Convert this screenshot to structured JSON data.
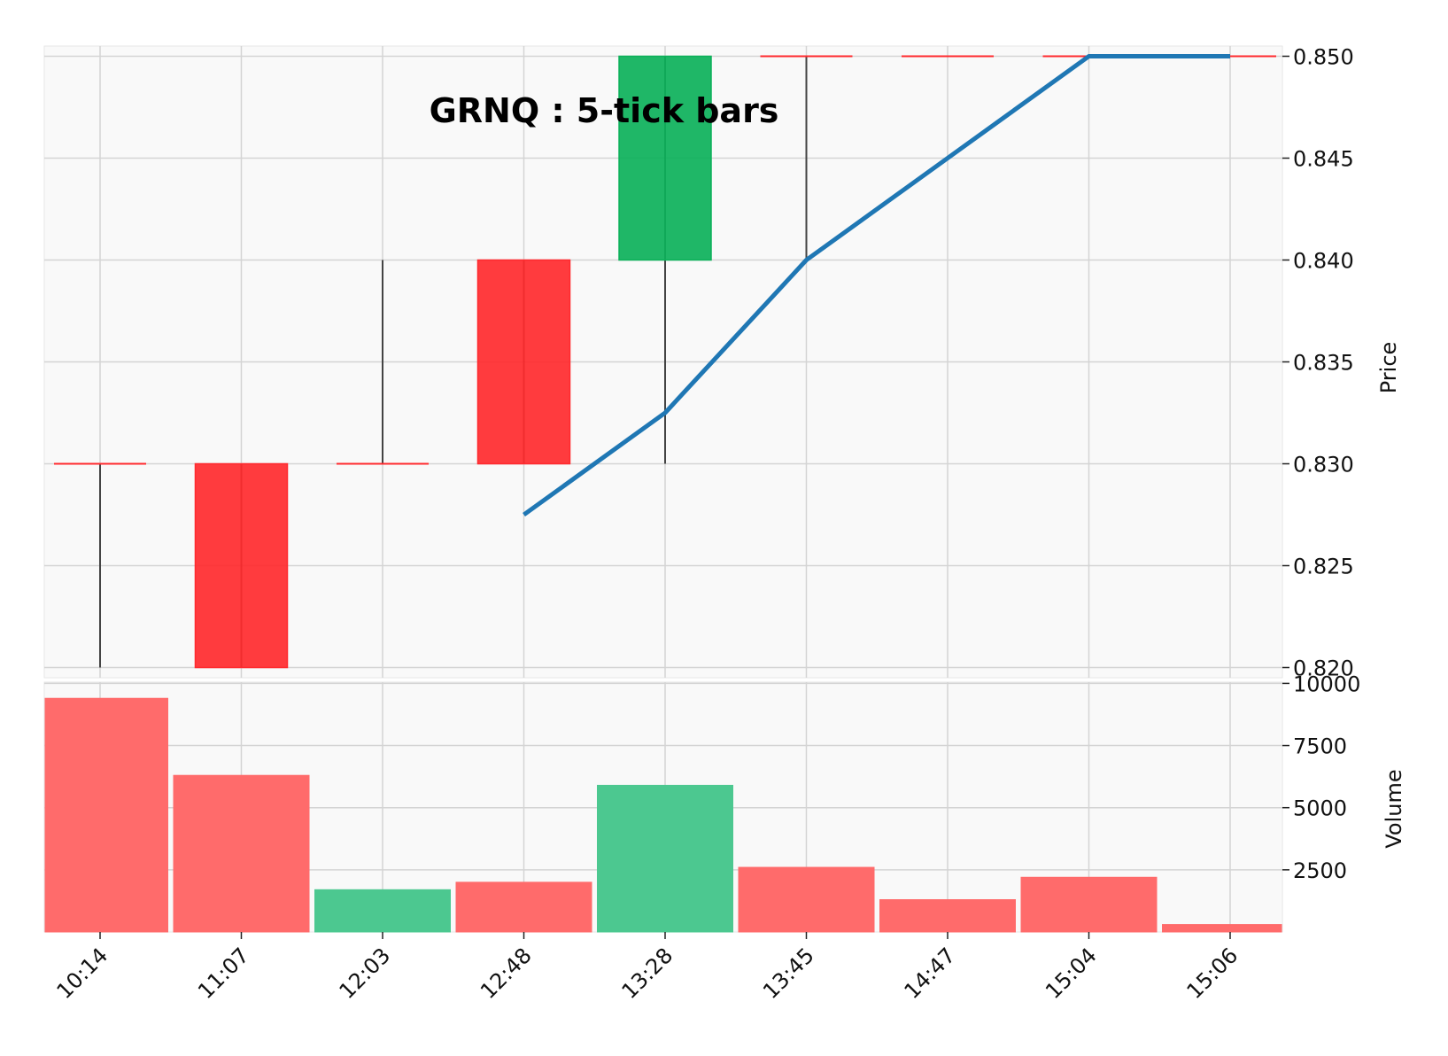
{
  "chart_data": {
    "type": "candlestick",
    "title": "GRNQ : 5-tick bars",
    "categories": [
      "10:14",
      "11:07",
      "12:03",
      "12:48",
      "13:28",
      "13:45",
      "14:47",
      "15:04",
      "15:06"
    ],
    "ohlc": [
      {
        "open": 0.83,
        "high": 0.83,
        "low": 0.82,
        "close": 0.83
      },
      {
        "open": 0.83,
        "high": 0.83,
        "low": 0.82,
        "close": 0.82
      },
      {
        "open": 0.83,
        "high": 0.84,
        "low": 0.83,
        "close": 0.83
      },
      {
        "open": 0.84,
        "high": 0.84,
        "low": 0.83,
        "close": 0.83
      },
      {
        "open": 0.84,
        "high": 0.85,
        "low": 0.83,
        "close": 0.85
      },
      {
        "open": 0.85,
        "high": 0.85,
        "low": 0.84,
        "close": 0.85
      },
      {
        "open": 0.85,
        "high": 0.85,
        "low": 0.85,
        "close": 0.85
      },
      {
        "open": 0.85,
        "high": 0.85,
        "low": 0.85,
        "close": 0.85
      },
      {
        "open": 0.85,
        "high": 0.85,
        "low": 0.85,
        "close": 0.85
      }
    ],
    "volume": [
      9400,
      6300,
      1700,
      2000,
      5900,
      2600,
      1300,
      2200,
      300
    ],
    "volume_up": [
      false,
      false,
      true,
      false,
      true,
      false,
      false,
      false,
      false
    ],
    "moving_average": [
      null,
      null,
      null,
      0.8275,
      0.8325,
      0.84,
      0.845,
      0.85,
      0.85
    ],
    "price_axis": {
      "label": "Price",
      "ylim": [
        0.8195,
        0.8505
      ],
      "ticks": [
        "0.820",
        "0.825",
        "0.830",
        "0.835",
        "0.840",
        "0.845",
        "0.850"
      ]
    },
    "volume_axis": {
      "label": "Volume",
      "ylim": [
        0,
        10050
      ],
      "ticks": [
        "2500",
        "5000",
        "7500",
        "10000"
      ]
    },
    "grid": true,
    "colors": {
      "up": "#0cb15a",
      "down": "#ff2a2e",
      "wick": "#444444",
      "ma": "#1f77b4",
      "volume_up": "#4cc890",
      "volume_down": "#ff6b6b",
      "panel_bg": "#f9f9f9",
      "grid": "#d4d4d4"
    }
  }
}
